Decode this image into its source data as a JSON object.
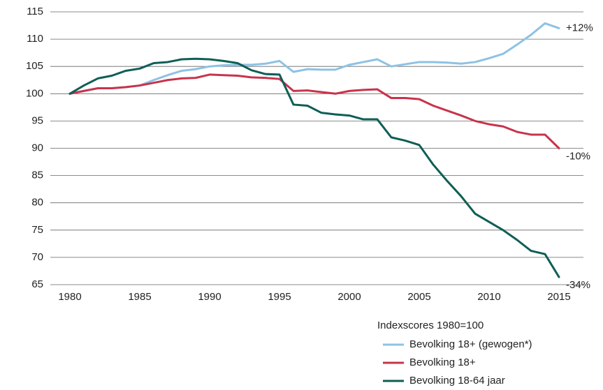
{
  "chart_data": {
    "type": "line",
    "x": [
      1980,
      1981,
      1982,
      1983,
      1984,
      1985,
      1986,
      1987,
      1988,
      1989,
      1990,
      1991,
      1992,
      1993,
      1994,
      1995,
      1996,
      1997,
      1998,
      1999,
      2000,
      2001,
      2002,
      2003,
      2004,
      2005,
      2006,
      2007,
      2008,
      2009,
      2010,
      2011,
      2012,
      2013,
      2014,
      2015
    ],
    "series": [
      {
        "name": "Bevolking 18+ (gewogen*)",
        "color": "#8dc2e4",
        "end_label": "+12%",
        "values": [
          100,
          100.5,
          101,
          101,
          101.2,
          101.5,
          102.5,
          103.4,
          104.2,
          104.5,
          105,
          105.2,
          105.3,
          105.3,
          105.5,
          106,
          104,
          104.5,
          104.4,
          104.4,
          105.3,
          105.8,
          106.3,
          105,
          105.4,
          105.8,
          105.8,
          105.7,
          105.5,
          105.8,
          106.5,
          107.3,
          109,
          110.8,
          112.9,
          112
        ]
      },
      {
        "name": "Bevolking 18+",
        "color": "#c8334b",
        "end_label": "-10%",
        "values": [
          100,
          100.5,
          101,
          101,
          101.2,
          101.5,
          102,
          102.5,
          102.8,
          102.9,
          103.5,
          103.4,
          103.3,
          103,
          102.9,
          102.7,
          100.5,
          100.6,
          100.3,
          100,
          100.5,
          100.7,
          100.8,
          99.2,
          99.2,
          99,
          97.8,
          96.9,
          96,
          95,
          94.4,
          94,
          93,
          92.5,
          92.5,
          90
        ]
      },
      {
        "name": "Bevolking 18-64 jaar",
        "color": "#0e5e56",
        "end_label": "-34%",
        "values": [
          100,
          101.5,
          102.8,
          103.3,
          104.2,
          104.6,
          105.6,
          105.8,
          106.3,
          106.4,
          106.3,
          106,
          105.6,
          104.3,
          103.6,
          103.5,
          98,
          97.8,
          96.5,
          96.2,
          96,
          95.3,
          95.3,
          92,
          91.4,
          90.6,
          87,
          84,
          81.2,
          78,
          76.5,
          75,
          73.2,
          71.2,
          70.6,
          66.4
        ]
      }
    ],
    "legend_title": "Indexscores 1980=100",
    "xlim": [
      1978.6,
      2016.75
    ],
    "xticks": [
      1980,
      1985,
      1990,
      1995,
      2000,
      2005,
      2010,
      2015
    ],
    "ylim": [
      65,
      115
    ],
    "yticks": [
      65,
      70,
      75,
      80,
      85,
      90,
      95,
      100,
      105,
      110,
      115
    ],
    "grid": true
  }
}
